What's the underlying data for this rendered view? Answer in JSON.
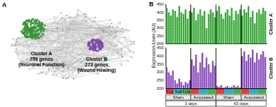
{
  "panel_a": {
    "label": "A",
    "clusters": [
      {
        "name": "Cluster A",
        "size": "759 genes",
        "function": "(Neuronal Function)",
        "color": "#3aa83a"
      },
      {
        "name": "Cluster B",
        "size": "273 genes",
        "function": "(Wound Healing)",
        "color": "#8a4fbf"
      }
    ]
  },
  "panel_b_label": "B",
  "ylabel": "Expression Level (AU)",
  "x_annotations": {
    "timepoints": [
      {
        "label": "T+1",
        "color": "#e0413a"
      },
      {
        "label": "T+8",
        "color": "#2ab3c0"
      },
      {
        "label": "T+16",
        "color": "#47b04b"
      }
    ],
    "conditions": [
      "Sham",
      "Amputated",
      "Sham",
      "Amputated"
    ],
    "durations": [
      "3 days",
      "63 days"
    ]
  },
  "chart_data": [
    {
      "type": "bar",
      "title": "Cluster A",
      "categories": [
        null,
        null,
        null,
        null,
        null,
        null,
        null,
        null,
        null,
        null,
        null,
        null,
        null,
        null,
        null,
        null,
        null,
        null,
        null,
        null,
        null,
        null,
        null,
        null,
        null,
        null,
        null,
        null,
        null,
        null,
        null,
        null,
        null,
        null,
        null,
        null,
        null,
        null,
        null,
        null,
        null,
        null,
        null,
        null,
        null,
        null,
        null,
        null
      ],
      "values": [
        430,
        400,
        380,
        420,
        410,
        370,
        440,
        400,
        390,
        420,
        360,
        410,
        400,
        430,
        350,
        390,
        420,
        380,
        410,
        300,
        390,
        420,
        400,
        370,
        410,
        440,
        390,
        360,
        400,
        420,
        380,
        430,
        350,
        410,
        390,
        420,
        380,
        420,
        400,
        440,
        370,
        410,
        330,
        400,
        420,
        390,
        430,
        410
      ],
      "color": "#3aa83a",
      "ylim": [
        200,
        450
      ],
      "yticks": [
        200,
        250,
        300,
        350,
        400,
        450
      ],
      "grid": false,
      "tick_labels": "y"
    },
    {
      "type": "bar",
      "title": "Cluster B",
      "categories": [
        null,
        null,
        null,
        null,
        null,
        null,
        null,
        null,
        null,
        null,
        null,
        null,
        null,
        null,
        null,
        null,
        null,
        null,
        null,
        null,
        null,
        null,
        null,
        null,
        null,
        null,
        null,
        null,
        null,
        null,
        null,
        null,
        null,
        null,
        null,
        null,
        null,
        null,
        null,
        null,
        null,
        null,
        null,
        null,
        null,
        null,
        null,
        null
      ],
      "values": [
        330,
        300,
        280,
        310,
        250,
        230,
        260,
        240,
        220,
        240,
        230,
        250,
        380,
        340,
        410,
        300,
        360,
        420,
        330,
        390,
        350,
        300,
        370,
        340,
        215,
        210,
        220,
        205,
        210,
        215,
        205,
        210,
        220,
        210,
        215,
        205,
        400,
        430,
        370,
        410,
        390,
        440,
        360,
        420,
        380,
        410,
        430,
        395
      ],
      "color": "#8a4fbf",
      "ylim": [
        200,
        450
      ],
      "yticks": [
        200,
        250,
        300,
        350,
        400,
        450
      ],
      "grid": false,
      "tick_labels": "y"
    }
  ]
}
